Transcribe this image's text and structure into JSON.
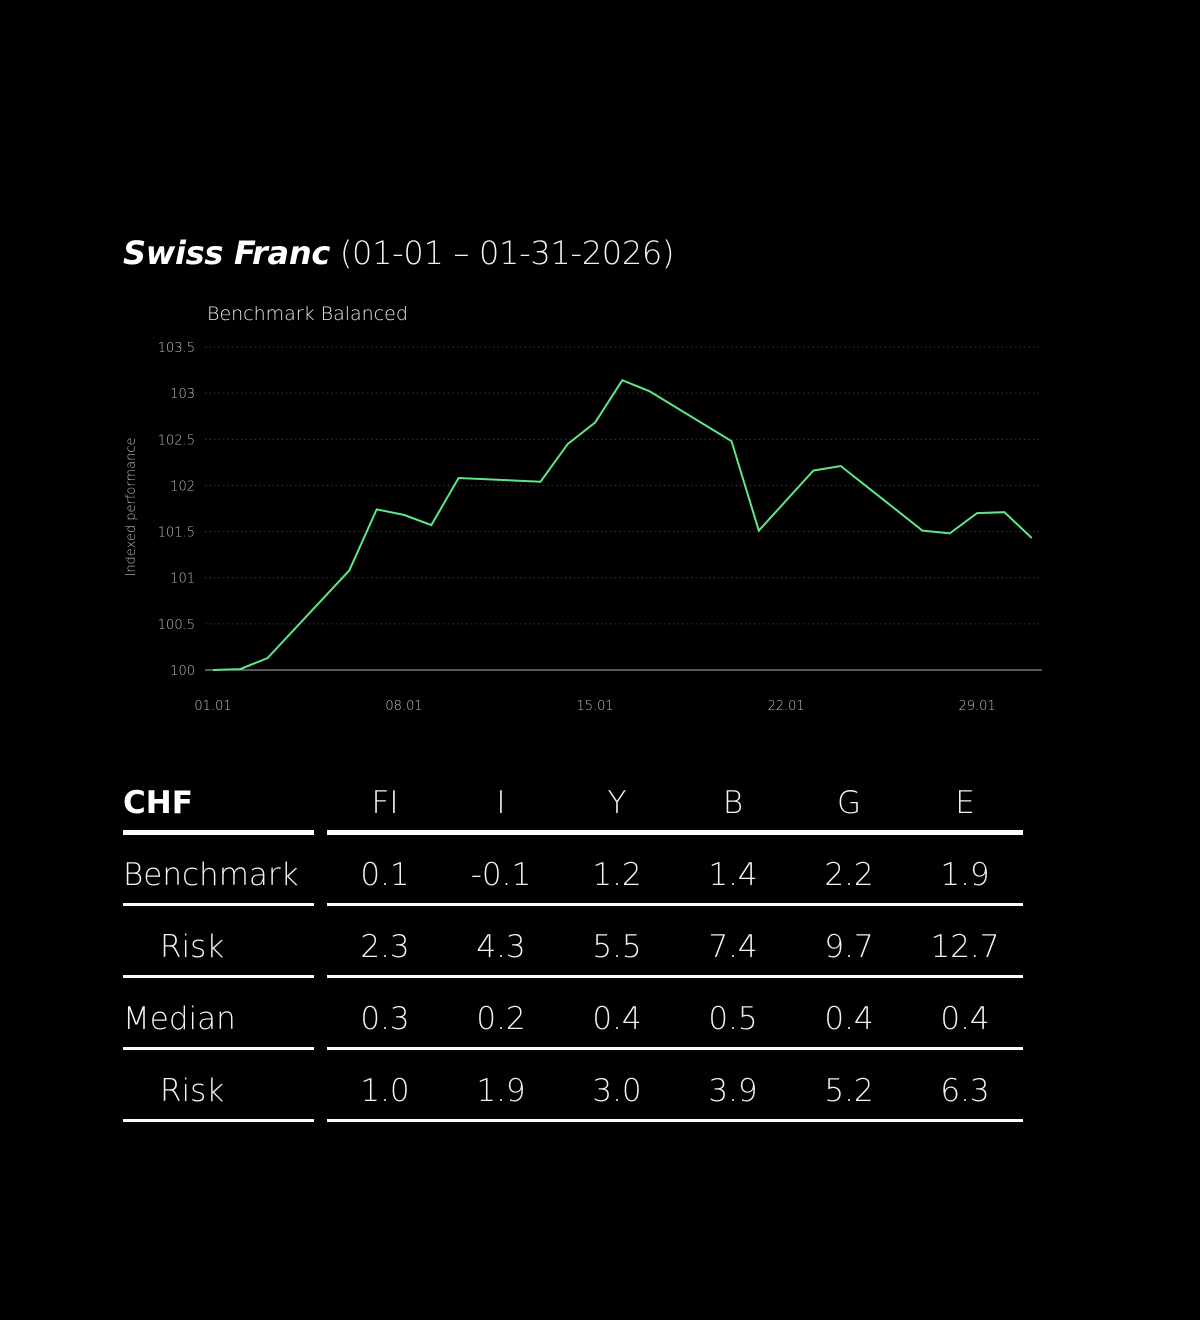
{
  "title": {
    "name": "Swiss Franc",
    "range": "(01-01 – 01-31-2026)"
  },
  "chart_data": {
    "type": "line",
    "title": "Benchmark Balanced",
    "xlabel": "",
    "ylabel": "Indexed performance",
    "ylim": [
      100,
      103.5
    ],
    "yticks": [
      "100",
      "100.5",
      "101",
      "101.5",
      "102",
      "102.5",
      "103",
      "103.5"
    ],
    "xticks": [
      {
        "day": 1,
        "label": "01.01"
      },
      {
        "day": 8,
        "label": "08.01"
      },
      {
        "day": 15,
        "label": "15.01"
      },
      {
        "day": 22,
        "label": "22.01"
      },
      {
        "day": 29,
        "label": "29.01"
      }
    ],
    "grid": true,
    "line_color": "#5EE68A",
    "series": [
      {
        "name": "Benchmark Balanced",
        "points": [
          {
            "day": 1,
            "value": 100.0
          },
          {
            "day": 2,
            "value": 100.01
          },
          {
            "day": 3,
            "value": 100.13
          },
          {
            "day": 6,
            "value": 101.08
          },
          {
            "day": 7,
            "value": 101.74
          },
          {
            "day": 8,
            "value": 101.68
          },
          {
            "day": 9,
            "value": 101.57
          },
          {
            "day": 10,
            "value": 102.08
          },
          {
            "day": 13,
            "value": 102.04
          },
          {
            "day": 14,
            "value": 102.45
          },
          {
            "day": 15,
            "value": 102.68
          },
          {
            "day": 16,
            "value": 103.14
          },
          {
            "day": 17,
            "value": 103.02
          },
          {
            "day": 20,
            "value": 102.48
          },
          {
            "day": 21,
            "value": 101.51
          },
          {
            "day": 23,
            "value": 102.16
          },
          {
            "day": 24,
            "value": 102.21
          },
          {
            "day": 27,
            "value": 101.51
          },
          {
            "day": 28,
            "value": 101.48
          },
          {
            "day": 29,
            "value": 101.7
          },
          {
            "day": 30,
            "value": 101.71
          },
          {
            "day": 31,
            "value": 101.43
          }
        ]
      }
    ]
  },
  "table": {
    "corner": "CHF",
    "columns": [
      "FI",
      "I",
      "Y",
      "B",
      "G",
      "E"
    ],
    "rows": [
      {
        "label": "Benchmark",
        "indent": false,
        "values": [
          "0.1",
          "-0.1",
          "1.2",
          "1.4",
          "2.2",
          "1.9"
        ]
      },
      {
        "label": "Risk",
        "indent": true,
        "values": [
          "2.3",
          "4.3",
          "5.5",
          "7.4",
          "9.7",
          "12.7"
        ]
      },
      {
        "label": "Median",
        "indent": false,
        "values": [
          "0.3",
          "0.2",
          "0.4",
          "0.5",
          "0.4",
          "0.4"
        ]
      },
      {
        "label": "Risk",
        "indent": true,
        "values": [
          "1.0",
          "1.9",
          "3.0",
          "3.9",
          "5.2",
          "6.3"
        ]
      }
    ]
  }
}
